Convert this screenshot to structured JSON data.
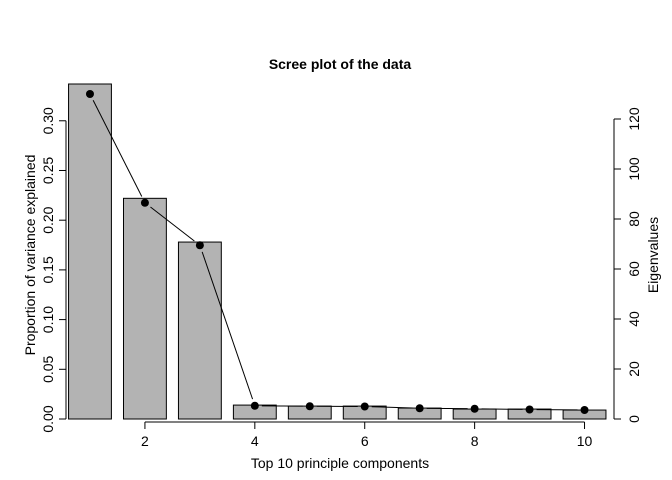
{
  "chart_data": {
    "type": "bar",
    "title": "Scree plot of the data",
    "xlabel": "Top 10 principle components",
    "ylabel": "Proportion of variance explained",
    "y2label": "Eigenvalues",
    "categories": [
      1,
      2,
      3,
      4,
      5,
      6,
      7,
      8,
      9,
      10
    ],
    "series": [
      {
        "type": "bar",
        "axis": "left",
        "values": [
          0.337,
          0.222,
          0.178,
          0.014,
          0.013,
          0.013,
          0.011,
          0.01,
          0.01,
          0.009
        ]
      },
      {
        "type": "line",
        "axis": "right",
        "values": [
          130.0,
          86.5,
          69.5,
          5.3,
          5.1,
          5.0,
          4.3,
          4.1,
          3.8,
          3.6
        ]
      }
    ],
    "xticks": [
      2,
      4,
      6,
      8,
      10
    ],
    "yticks": [
      0.0,
      0.05,
      0.1,
      0.15,
      0.2,
      0.25,
      0.3
    ],
    "ytick_labels": [
      "0.00",
      "0.05",
      "0.10",
      "0.15",
      "0.20",
      "0.25",
      "0.30"
    ],
    "y2ticks": [
      0,
      20,
      40,
      60,
      80,
      100,
      120
    ],
    "ylim": [
      0,
      0.337
    ],
    "y2lim": [
      0,
      134
    ],
    "xlim": [
      0.6,
      10.5
    ],
    "bar_color": "#b3b3b3",
    "grid": false,
    "legend": "none"
  }
}
